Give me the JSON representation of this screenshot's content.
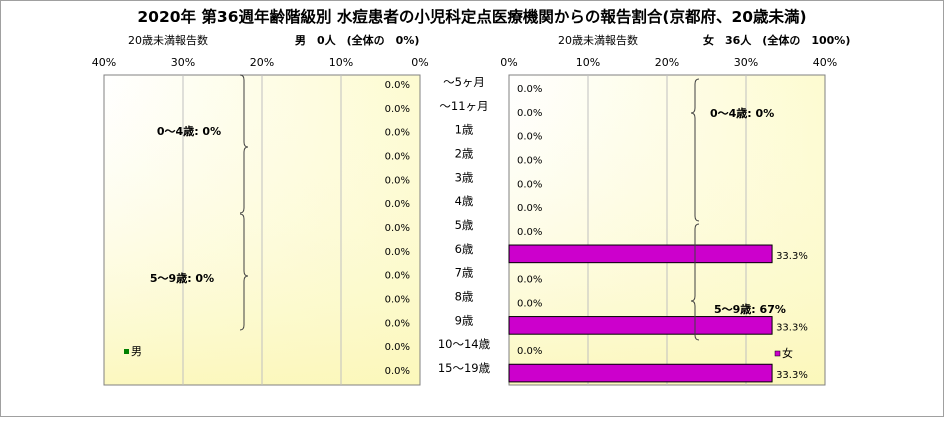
{
  "title": "2020年 第36週年齢階級別 水痘患者の小児科定点医療機関からの報告割合(京都府、20歳未満)",
  "left_panel": {
    "axis_caption": "20歳未満報告数",
    "summary": "男　0人　(全体の　0%)",
    "legend_label": "男",
    "group_labels": [
      "0～4歳: 0%",
      "5～9歳: 0%"
    ],
    "color": "#008000"
  },
  "right_panel": {
    "axis_caption": "20歳未満報告数",
    "summary": "女　36人　(全体の　100%)",
    "legend_label": "女",
    "group_labels": [
      "0～4歳: 0%",
      "5～9歳: 67%"
    ],
    "color": "#cc00cc"
  },
  "chart_data": {
    "type": "bar",
    "categories": [
      "～5ヶ月",
      "～11ヶ月",
      "1歳",
      "2歳",
      "3歳",
      "4歳",
      "5歳",
      "6歳",
      "7歳",
      "8歳",
      "9歳",
      "10～14歳",
      "15～19歳"
    ],
    "x_ticks_left": [
      "40%",
      "30%",
      "20%",
      "10%",
      "0%"
    ],
    "x_ticks_right": [
      "0%",
      "10%",
      "20%",
      "30%",
      "40%"
    ],
    "xlim": [
      0,
      40
    ],
    "series": [
      {
        "name": "男",
        "values": [
          0,
          0,
          0,
          0,
          0,
          0,
          0,
          0,
          0,
          0,
          0,
          0,
          0
        ],
        "labels": [
          "0.0%",
          "0.0%",
          "0.0%",
          "0.0%",
          "0.0%",
          "0.0%",
          "0.0%",
          "0.0%",
          "0.0%",
          "0.0%",
          "0.0%",
          "0.0%",
          "0.0%"
        ]
      },
      {
        "name": "女",
        "values": [
          0,
          0,
          0,
          0,
          0,
          0,
          0,
          33.3,
          0,
          0,
          33.3,
          0,
          33.3
        ],
        "labels": [
          "0.0%",
          "0.0%",
          "0.0%",
          "0.0%",
          "0.0%",
          "0.0%",
          "0.0%",
          "33.3%",
          "0.0%",
          "0.0%",
          "33.3%",
          "0.0%",
          "33.3%"
        ]
      }
    ]
  }
}
